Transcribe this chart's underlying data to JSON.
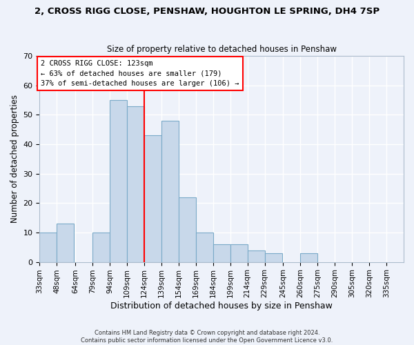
{
  "title": "2, CROSS RIGG CLOSE, PENSHAW, HOUGHTON LE SPRING, DH4 7SP",
  "subtitle": "Size of property relative to detached houses in Penshaw",
  "xlabel": "Distribution of detached houses by size in Penshaw",
  "ylabel": "Number of detached properties",
  "bar_color": "#c8d8ea",
  "bar_edge_color": "#7aaac8",
  "background_color": "#eef2fa",
  "grid_color": "#ffffff",
  "categories": [
    "33sqm",
    "48sqm",
    "64sqm",
    "79sqm",
    "94sqm",
    "109sqm",
    "124sqm",
    "139sqm",
    "154sqm",
    "169sqm",
    "184sqm",
    "199sqm",
    "214sqm",
    "229sqm",
    "245sqm",
    "260sqm",
    "275sqm",
    "290sqm",
    "305sqm",
    "320sqm",
    "335sqm"
  ],
  "values": [
    10,
    13,
    0,
    10,
    55,
    53,
    43,
    48,
    22,
    10,
    6,
    6,
    4,
    3,
    0,
    3,
    0,
    0,
    0,
    0,
    0
  ],
  "ylim": [
    0,
    70
  ],
  "yticks": [
    0,
    10,
    20,
    30,
    40,
    50,
    60,
    70
  ],
  "bin_edges": [
    33,
    48,
    64,
    79,
    94,
    109,
    124,
    139,
    154,
    169,
    184,
    199,
    214,
    229,
    245,
    260,
    275,
    290,
    305,
    320,
    335
  ],
  "bin_width": 15,
  "redline_x": 124,
  "marker_label": "2 CROSS RIGG CLOSE: 123sqm",
  "annotation_line1": "← 63% of detached houses are smaller (179)",
  "annotation_line2": "37% of semi-detached houses are larger (106) →",
  "footer_line1": "Contains HM Land Registry data © Crown copyright and database right 2024.",
  "footer_line2": "Contains public sector information licensed under the Open Government Licence v3.0."
}
